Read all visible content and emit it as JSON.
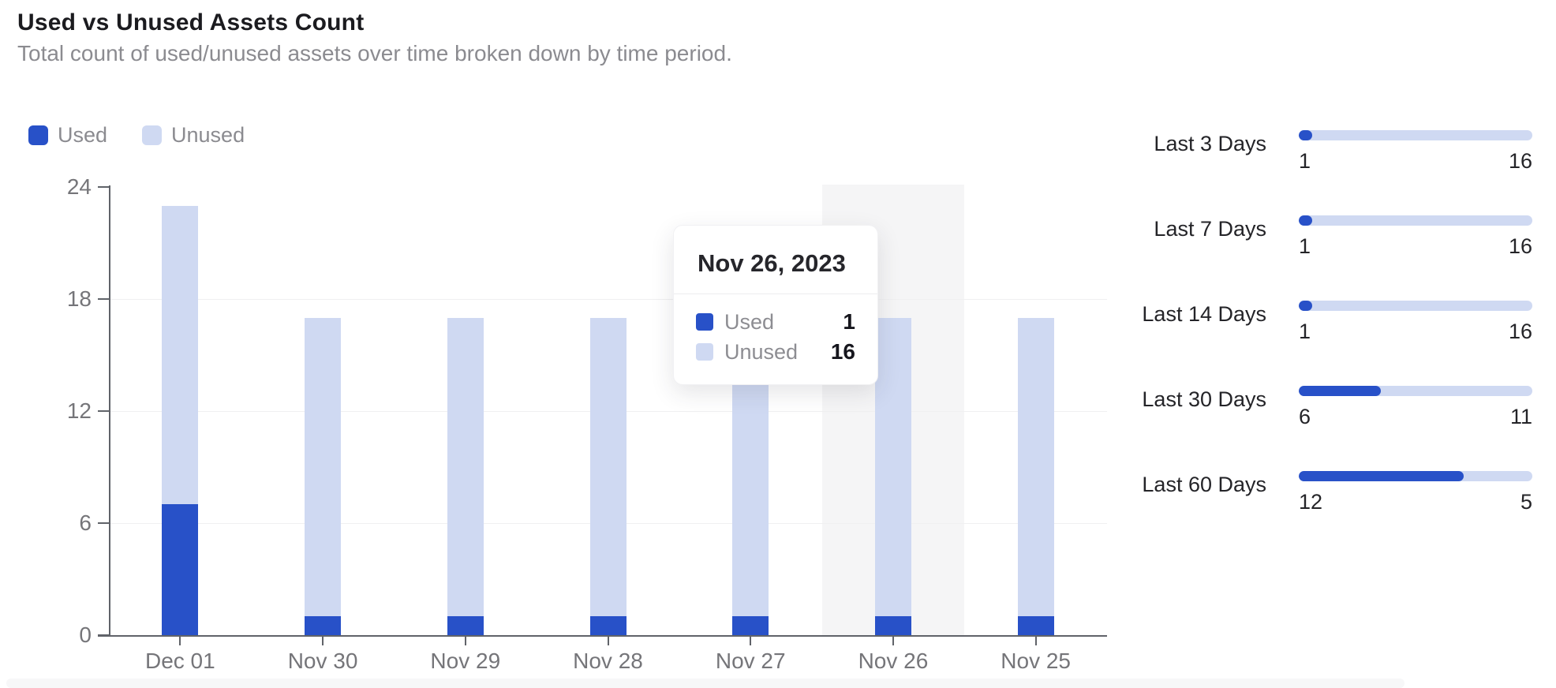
{
  "header": {
    "title": "Used vs Unused Assets Count",
    "subtitle": "Total count of used/unused assets over time broken down by time period."
  },
  "colors": {
    "used": "#2851c8",
    "unused": "#cfd9f2",
    "hover_band": "#f5f5f6",
    "axis": "#606369",
    "grid": "#f0f0f1",
    "tick_text": "#757579"
  },
  "legend": {
    "items": [
      {
        "label": "Used",
        "color": "#2851c8"
      },
      {
        "label": "Unused",
        "color": "#cfd9f2"
      }
    ]
  },
  "chart_data": {
    "type": "bar",
    "stacked": true,
    "categories": [
      "Dec 01",
      "Nov 30",
      "Nov 29",
      "Nov 28",
      "Nov 27",
      "Nov 26",
      "Nov 25"
    ],
    "series": [
      {
        "name": "Used",
        "color": "#2851c8",
        "values": [
          7,
          1,
          1,
          1,
          1,
          1,
          1
        ]
      },
      {
        "name": "Unused",
        "color": "#cfd9f2",
        "values": [
          16,
          16,
          16,
          16,
          16,
          16,
          16
        ]
      }
    ],
    "title": "Used vs Unused Assets Count",
    "xlabel": "",
    "ylabel": "",
    "ylim": [
      0,
      24
    ],
    "yticks": [
      0,
      6,
      12,
      18,
      24
    ],
    "gridlines": [
      6,
      12,
      18
    ],
    "legend_position": "top-left",
    "highlighted_category": "Nov 26"
  },
  "tooltip": {
    "title": "Nov 26, 2023",
    "rows": [
      {
        "label": "Used",
        "value": "1",
        "color": "#2851c8"
      },
      {
        "label": "Unused",
        "value": "16",
        "color": "#cfd9f2"
      }
    ]
  },
  "time_periods": {
    "rows": [
      {
        "label": "Last 3 Days",
        "start_value": "1",
        "end_value": "16"
      },
      {
        "label": "Last 7 Days",
        "start_value": "1",
        "end_value": "16"
      },
      {
        "label": "Last 14 Days",
        "start_value": "1",
        "end_value": "16"
      },
      {
        "label": "Last 30 Days",
        "start_value": "6",
        "end_value": "11"
      },
      {
        "label": "Last 60 Days",
        "start_value": "12",
        "end_value": "5"
      }
    ]
  }
}
